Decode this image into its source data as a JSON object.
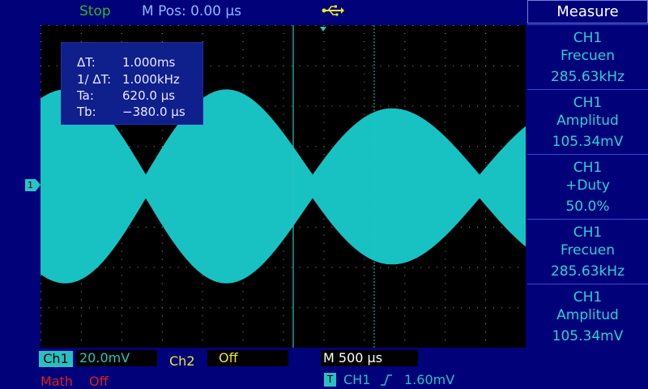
{
  "status": {
    "run_state": "Stop",
    "mpos": "M Pos: 0.00 µs"
  },
  "icons": {
    "usb": "usb-icon",
    "trigger_slope": "rising-edge-icon"
  },
  "colors": {
    "background": "#01017a",
    "grid_background": "#000000",
    "ch1": "#2ac0c0",
    "ch2": "#e8e830",
    "math": "#e02020",
    "run_state": "#2db52d"
  },
  "cursor_readout": {
    "dt_label": "ΔT:",
    "dt_value": "1.000ms",
    "inv_dt_label": "1/ ΔT:",
    "inv_dt_value": "1.000kHz",
    "ta_label": "Ta:",
    "ta_value": "620.0 µs",
    "tb_label": "Tb:",
    "tb_value": "−380.0 µs"
  },
  "ch1_marker": "1",
  "measure": {
    "title": "Measure",
    "items": [
      {
        "channel": "CH1",
        "name": "Frecuen",
        "value": "285.63kHz"
      },
      {
        "channel": "CH1",
        "name": "Amplitud",
        "value": "105.34mV"
      },
      {
        "channel": "CH1",
        "name": "+Duty",
        "value": "50.0%"
      },
      {
        "channel": "CH1",
        "name": "Frecuen",
        "value": "285.63kHz"
      },
      {
        "channel": "CH1",
        "name": "Amplitud",
        "value": "105.34mV"
      }
    ]
  },
  "bottom": {
    "ch1_label": "Ch1",
    "ch1_volts_div": "20.0mV",
    "ch2_label": "Ch2",
    "ch2_status": "Off",
    "timebase": "M 500 µs",
    "math_label": "Math",
    "math_status": "Off",
    "trigger_marker": "T",
    "trigger_source": "CH1",
    "trigger_level": "1.60mV"
  }
}
